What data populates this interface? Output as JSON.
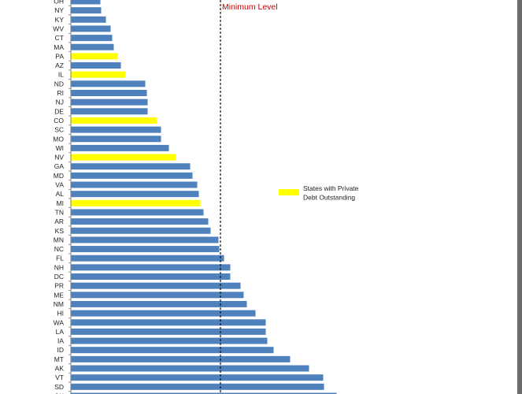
{
  "chart_data": {
    "type": "bar",
    "orientation": "horizontal",
    "categories": [
      "OH",
      "NY",
      "KY",
      "WV",
      "CT",
      "MA",
      "PA",
      "AZ",
      "IL",
      "ND",
      "RI",
      "NJ",
      "DE",
      "CO",
      "SC",
      "MO",
      "WI",
      "NV",
      "GA",
      "MD",
      "VA",
      "AL",
      "MI",
      "TN",
      "AR",
      "KS",
      "MN",
      "NC",
      "FL",
      "NH",
      "DC",
      "PR",
      "ME",
      "NM",
      "HI",
      "WA",
      "LA",
      "IA",
      "ID",
      "MT",
      "AK",
      "VT",
      "SD",
      "OK"
    ],
    "values": [
      37,
      38,
      44,
      50,
      52,
      54,
      59,
      63,
      69,
      94,
      96,
      97,
      97,
      109,
      114,
      114,
      124,
      133,
      151,
      154,
      160,
      162,
      164,
      168,
      174,
      177,
      187,
      188,
      194,
      202,
      202,
      215,
      219,
      223,
      234,
      247,
      247,
      249,
      257,
      278,
      302,
      320,
      321,
      337
    ],
    "highlighted": [
      "PA",
      "IL",
      "CO",
      "NV",
      "MI"
    ],
    "reference_line": {
      "value": 190,
      "label": "Minimum Level"
    },
    "legend": {
      "label": "States with Private Debt Outstanding",
      "position": "right"
    },
    "colors": {
      "bar": "#4f81bd",
      "highlight": "#ffff00",
      "reference_label": "#cc0000"
    },
    "title": "",
    "xlabel": "",
    "ylabel": "",
    "grid": false
  }
}
